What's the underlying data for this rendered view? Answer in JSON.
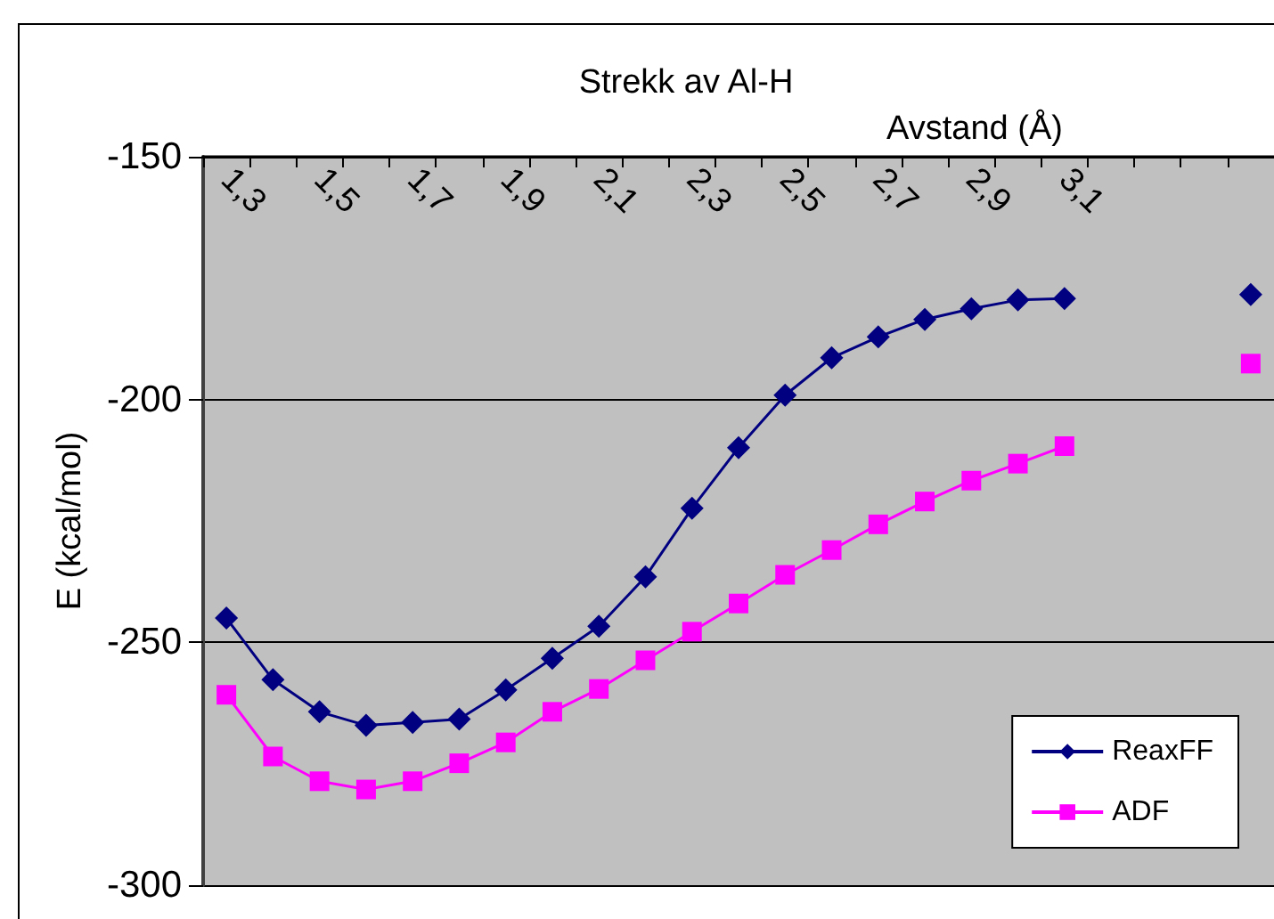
{
  "chart_data": {
    "type": "line",
    "title": "Strekk av Al-H",
    "xlabel": "Avstand (Å)",
    "ylabel": "E (kcal/mol)",
    "categories": [
      "1,3",
      null,
      "1,5",
      null,
      "1,7",
      null,
      "1,9",
      null,
      "2,1",
      null,
      "2,3",
      null,
      "2,5",
      null,
      "2,7",
      null,
      "2,9",
      null,
      "3,1",
      null,
      null,
      null,
      null
    ],
    "series": [
      {
        "name": "ReaxFF",
        "color": "#000080",
        "marker": "diamond",
        "values": [
          -245,
          -257.7,
          -264.3,
          -267.1,
          -266.5,
          -265.8,
          -259.8,
          -253.3,
          -246.7,
          -236.5,
          -222.4,
          -209.9,
          -199.1,
          -191.4,
          -187.1,
          -183.5,
          -181.3,
          -179.5,
          -179.2,
          null,
          null,
          null,
          -178.4
        ]
      },
      {
        "name": "ADF",
        "color": "#ff00ff",
        "marker": "square",
        "values": [
          -260.8,
          -273.5,
          -278.6,
          -280.3,
          -278.6,
          -274.9,
          -270.6,
          -264.3,
          -259.6,
          -253.7,
          -247.8,
          -242,
          -236.1,
          -231,
          -225.7,
          -221,
          -216.7,
          -213.2,
          -209.6,
          null,
          null,
          null,
          -192.6
        ]
      }
    ],
    "ylim": [
      -300,
      -150
    ],
    "yticks": [
      -150,
      -200,
      -250,
      -300
    ],
    "grid": "y",
    "legend": "bottom right",
    "line_style": "solid"
  }
}
